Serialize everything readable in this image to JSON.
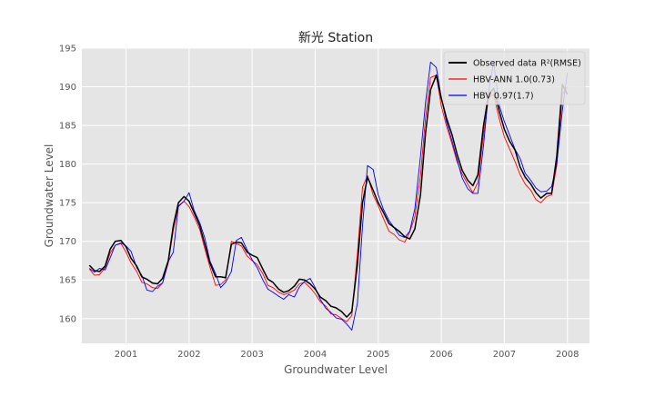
{
  "colors": {
    "plot_bg": "#e5e5e5",
    "grid": "#ffffff",
    "axis_text": "#555555",
    "title_text": "#222222",
    "legend_bg": "#e5e5e5"
  },
  "chart_data": {
    "type": "line",
    "title": "新光 Station",
    "xlabel": "Groundwater Level",
    "ylabel": "Groundwater Level",
    "xlim": [
      2000.3,
      2008.35
    ],
    "ylim": [
      156.8,
      195
    ],
    "grid": true,
    "legend_position": "top-right",
    "xticks": [
      2001,
      2002,
      2003,
      2004,
      2005,
      2006,
      2007,
      2008
    ],
    "xtick_labels": [
      "2001",
      "2002",
      "2003",
      "2004",
      "2005",
      "2006",
      "2007",
      "2008"
    ],
    "yticks": [
      160,
      165,
      170,
      175,
      180,
      185,
      190,
      195
    ],
    "ytick_labels": [
      "160",
      "165",
      "170",
      "175",
      "180",
      "185",
      "190",
      "195"
    ],
    "series": [
      {
        "name": "Observed data",
        "legend_suffix": "R²(RMSE)",
        "color": "#000000",
        "width": 1.5,
        "points": [
          [
            2000.42,
            166.9
          ],
          [
            2000.5,
            166.2
          ],
          [
            2000.58,
            166.1
          ],
          [
            2000.67,
            166.8
          ],
          [
            2000.75,
            169.0
          ],
          [
            2000.83,
            170.0
          ],
          [
            2000.92,
            170.1
          ],
          [
            2001.0,
            169.3
          ],
          [
            2001.08,
            167.8
          ],
          [
            2001.17,
            166.8
          ],
          [
            2001.25,
            165.4
          ],
          [
            2001.33,
            165.1
          ],
          [
            2001.42,
            164.6
          ],
          [
            2001.5,
            164.5
          ],
          [
            2001.58,
            165.2
          ],
          [
            2001.67,
            167.5
          ],
          [
            2001.75,
            172.0
          ],
          [
            2001.83,
            175.0
          ],
          [
            2001.92,
            175.8
          ],
          [
            2002.0,
            175.2
          ],
          [
            2002.08,
            173.7
          ],
          [
            2002.17,
            172.0
          ],
          [
            2002.25,
            169.6
          ],
          [
            2002.33,
            167.2
          ],
          [
            2002.42,
            165.4
          ],
          [
            2002.5,
            165.4
          ],
          [
            2002.58,
            165.3
          ],
          [
            2002.67,
            169.6
          ],
          [
            2002.75,
            169.9
          ],
          [
            2002.83,
            169.8
          ],
          [
            2002.92,
            168.6
          ],
          [
            2003.0,
            168.2
          ],
          [
            2003.08,
            167.9
          ],
          [
            2003.17,
            166.4
          ],
          [
            2003.25,
            165.1
          ],
          [
            2003.33,
            164.7
          ],
          [
            2003.42,
            163.8
          ],
          [
            2003.5,
            163.4
          ],
          [
            2003.58,
            163.6
          ],
          [
            2003.67,
            164.2
          ],
          [
            2003.75,
            165.1
          ],
          [
            2003.83,
            165.0
          ],
          [
            2003.92,
            164.5
          ],
          [
            2004.0,
            163.8
          ],
          [
            2004.08,
            162.8
          ],
          [
            2004.17,
            162.3
          ],
          [
            2004.25,
            161.6
          ],
          [
            2004.33,
            161.4
          ],
          [
            2004.42,
            160.9
          ],
          [
            2004.5,
            160.2
          ],
          [
            2004.58,
            160.9
          ],
          [
            2004.67,
            167.0
          ],
          [
            2004.75,
            175.0
          ],
          [
            2004.83,
            178.3
          ],
          [
            2004.92,
            176.6
          ],
          [
            2005.0,
            175.0
          ],
          [
            2005.08,
            173.8
          ],
          [
            2005.17,
            172.3
          ],
          [
            2005.25,
            171.8
          ],
          [
            2005.33,
            171.3
          ],
          [
            2005.42,
            170.6
          ],
          [
            2005.5,
            170.3
          ],
          [
            2005.58,
            171.6
          ],
          [
            2005.67,
            176.0
          ],
          [
            2005.75,
            184.0
          ],
          [
            2005.83,
            189.6
          ],
          [
            2005.92,
            191.5
          ],
          [
            2006.0,
            188.5
          ],
          [
            2006.08,
            186.0
          ],
          [
            2006.17,
            183.8
          ],
          [
            2006.25,
            181.3
          ],
          [
            2006.33,
            179.2
          ],
          [
            2006.42,
            177.9
          ],
          [
            2006.5,
            177.2
          ],
          [
            2006.58,
            178.6
          ],
          [
            2006.67,
            185.0
          ],
          [
            2006.75,
            189.0
          ],
          [
            2006.83,
            189.8
          ],
          [
            2006.92,
            186.8
          ],
          [
            2007.0,
            184.5
          ],
          [
            2007.08,
            183.0
          ],
          [
            2007.17,
            181.8
          ],
          [
            2007.25,
            179.6
          ],
          [
            2007.33,
            178.3
          ],
          [
            2007.42,
            177.4
          ],
          [
            2007.5,
            176.3
          ],
          [
            2007.58,
            175.6
          ],
          [
            2007.67,
            176.2
          ],
          [
            2007.75,
            176.2
          ],
          [
            2007.83,
            181.0
          ],
          [
            2007.92,
            190.3
          ],
          [
            2008.0,
            189.0
          ]
        ]
      },
      {
        "name": "HBV-ANN 1.0(0.73)",
        "color": "#ff0000",
        "width": 0.9,
        "points": [
          [
            2000.42,
            166.4
          ],
          [
            2000.5,
            165.6
          ],
          [
            2000.58,
            165.7
          ],
          [
            2000.67,
            166.6
          ],
          [
            2000.75,
            168.5
          ],
          [
            2000.83,
            169.5
          ],
          [
            2000.92,
            169.7
          ],
          [
            2001.0,
            168.6
          ],
          [
            2001.08,
            167.2
          ],
          [
            2001.17,
            166.1
          ],
          [
            2001.25,
            164.7
          ],
          [
            2001.33,
            164.5
          ],
          [
            2001.42,
            164.0
          ],
          [
            2001.5,
            163.9
          ],
          [
            2001.58,
            164.6
          ],
          [
            2001.67,
            167.2
          ],
          [
            2001.75,
            171.4
          ],
          [
            2001.83,
            174.6
          ],
          [
            2001.92,
            175.2
          ],
          [
            2002.0,
            174.5
          ],
          [
            2002.08,
            173.2
          ],
          [
            2002.17,
            171.5
          ],
          [
            2002.25,
            169.0
          ],
          [
            2002.33,
            166.7
          ],
          [
            2002.42,
            164.3
          ],
          [
            2002.5,
            164.4
          ],
          [
            2002.58,
            165.0
          ],
          [
            2002.67,
            170.0
          ],
          [
            2002.75,
            169.7
          ],
          [
            2002.83,
            169.4
          ],
          [
            2002.92,
            168.1
          ],
          [
            2003.0,
            167.5
          ],
          [
            2003.08,
            167.0
          ],
          [
            2003.17,
            165.8
          ],
          [
            2003.25,
            164.3
          ],
          [
            2003.33,
            164.0
          ],
          [
            2003.42,
            163.4
          ],
          [
            2003.5,
            163.1
          ],
          [
            2003.58,
            163.3
          ],
          [
            2003.67,
            163.7
          ],
          [
            2003.75,
            164.5
          ],
          [
            2003.83,
            164.7
          ],
          [
            2003.92,
            164.0
          ],
          [
            2004.0,
            163.2
          ],
          [
            2004.08,
            162.2
          ],
          [
            2004.17,
            161.6
          ],
          [
            2004.25,
            160.6
          ],
          [
            2004.33,
            160.5
          ],
          [
            2004.42,
            160.0
          ],
          [
            2004.5,
            159.6
          ],
          [
            2004.58,
            160.4
          ],
          [
            2004.67,
            168.5
          ],
          [
            2004.75,
            177.0
          ],
          [
            2004.83,
            178.5
          ],
          [
            2004.92,
            176.0
          ],
          [
            2005.0,
            174.6
          ],
          [
            2005.08,
            173.0
          ],
          [
            2005.17,
            171.3
          ],
          [
            2005.25,
            170.9
          ],
          [
            2005.33,
            170.2
          ],
          [
            2005.42,
            169.9
          ],
          [
            2005.5,
            171.2
          ],
          [
            2005.58,
            173.2
          ],
          [
            2005.67,
            178.5
          ],
          [
            2005.75,
            186.0
          ],
          [
            2005.83,
            191.2
          ],
          [
            2005.92,
            191.5
          ],
          [
            2006.0,
            187.5
          ],
          [
            2006.08,
            185.0
          ],
          [
            2006.17,
            182.6
          ],
          [
            2006.25,
            180.3
          ],
          [
            2006.33,
            178.7
          ],
          [
            2006.42,
            177.4
          ],
          [
            2006.5,
            176.3
          ],
          [
            2006.58,
            177.6
          ],
          [
            2006.67,
            183.8
          ],
          [
            2006.75,
            188.6
          ],
          [
            2006.83,
            189.0
          ],
          [
            2006.92,
            185.8
          ],
          [
            2007.0,
            183.5
          ],
          [
            2007.08,
            182.0
          ],
          [
            2007.17,
            180.3
          ],
          [
            2007.25,
            178.6
          ],
          [
            2007.33,
            177.4
          ],
          [
            2007.42,
            176.6
          ],
          [
            2007.5,
            175.4
          ],
          [
            2007.58,
            175.0
          ],
          [
            2007.67,
            175.8
          ],
          [
            2007.75,
            176.0
          ],
          [
            2007.83,
            179.8
          ],
          [
            2007.92,
            189.0
          ],
          [
            2008.0,
            190.0
          ]
        ]
      },
      {
        "name": "HBV 0.97(1.7)",
        "color": "#0000ee",
        "width": 0.9,
        "points": [
          [
            2000.42,
            166.5
          ],
          [
            2000.5,
            166.0
          ],
          [
            2000.58,
            166.5
          ],
          [
            2000.67,
            166.3
          ],
          [
            2000.75,
            167.9
          ],
          [
            2000.83,
            169.5
          ],
          [
            2000.92,
            169.8
          ],
          [
            2001.0,
            169.4
          ],
          [
            2001.08,
            168.7
          ],
          [
            2001.17,
            166.6
          ],
          [
            2001.25,
            165.6
          ],
          [
            2001.33,
            163.7
          ],
          [
            2001.42,
            163.5
          ],
          [
            2001.5,
            164.2
          ],
          [
            2001.58,
            164.6
          ],
          [
            2001.67,
            167.4
          ],
          [
            2001.75,
            168.6
          ],
          [
            2001.83,
            174.5
          ],
          [
            2001.92,
            175.2
          ],
          [
            2002.0,
            176.3
          ],
          [
            2002.08,
            174.0
          ],
          [
            2002.17,
            172.4
          ],
          [
            2002.25,
            170.4
          ],
          [
            2002.33,
            167.5
          ],
          [
            2002.42,
            165.8
          ],
          [
            2002.5,
            164.0
          ],
          [
            2002.58,
            164.7
          ],
          [
            2002.67,
            166.1
          ],
          [
            2002.75,
            170.1
          ],
          [
            2002.83,
            170.5
          ],
          [
            2002.92,
            168.9
          ],
          [
            2003.0,
            167.6
          ],
          [
            2003.08,
            166.6
          ],
          [
            2003.17,
            165.0
          ],
          [
            2003.25,
            163.8
          ],
          [
            2003.33,
            163.4
          ],
          [
            2003.42,
            162.9
          ],
          [
            2003.5,
            162.5
          ],
          [
            2003.58,
            163.1
          ],
          [
            2003.67,
            162.8
          ],
          [
            2003.75,
            164.1
          ],
          [
            2003.83,
            164.8
          ],
          [
            2003.92,
            165.2
          ],
          [
            2004.0,
            164.0
          ],
          [
            2004.08,
            162.5
          ],
          [
            2004.17,
            161.3
          ],
          [
            2004.25,
            160.8
          ],
          [
            2004.33,
            160.1
          ],
          [
            2004.42,
            159.9
          ],
          [
            2004.5,
            159.3
          ],
          [
            2004.58,
            158.5
          ],
          [
            2004.67,
            162.0
          ],
          [
            2004.75,
            172.0
          ],
          [
            2004.83,
            179.8
          ],
          [
            2004.92,
            179.3
          ],
          [
            2005.0,
            176.0
          ],
          [
            2005.08,
            174.2
          ],
          [
            2005.17,
            172.7
          ],
          [
            2005.25,
            171.8
          ],
          [
            2005.33,
            170.8
          ],
          [
            2005.42,
            170.5
          ],
          [
            2005.5,
            171.3
          ],
          [
            2005.58,
            174.2
          ],
          [
            2005.67,
            181.0
          ],
          [
            2005.75,
            188.0
          ],
          [
            2005.83,
            193.2
          ],
          [
            2005.92,
            192.5
          ],
          [
            2006.0,
            188.6
          ],
          [
            2006.08,
            185.5
          ],
          [
            2006.17,
            183.0
          ],
          [
            2006.25,
            180.6
          ],
          [
            2006.33,
            178.2
          ],
          [
            2006.42,
            176.8
          ],
          [
            2006.5,
            176.2
          ],
          [
            2006.58,
            176.2
          ],
          [
            2006.67,
            182.4
          ],
          [
            2006.75,
            189.4
          ],
          [
            2006.83,
            193.2
          ],
          [
            2006.92,
            187.5
          ],
          [
            2007.0,
            185.5
          ],
          [
            2007.08,
            183.8
          ],
          [
            2007.17,
            181.9
          ],
          [
            2007.25,
            180.7
          ],
          [
            2007.33,
            178.8
          ],
          [
            2007.42,
            177.9
          ],
          [
            2007.5,
            176.9
          ],
          [
            2007.58,
            176.4
          ],
          [
            2007.67,
            176.5
          ],
          [
            2007.75,
            177.1
          ],
          [
            2007.83,
            180.0
          ],
          [
            2007.92,
            187.0
          ],
          [
            2008.0,
            191.8
          ]
        ]
      }
    ]
  }
}
